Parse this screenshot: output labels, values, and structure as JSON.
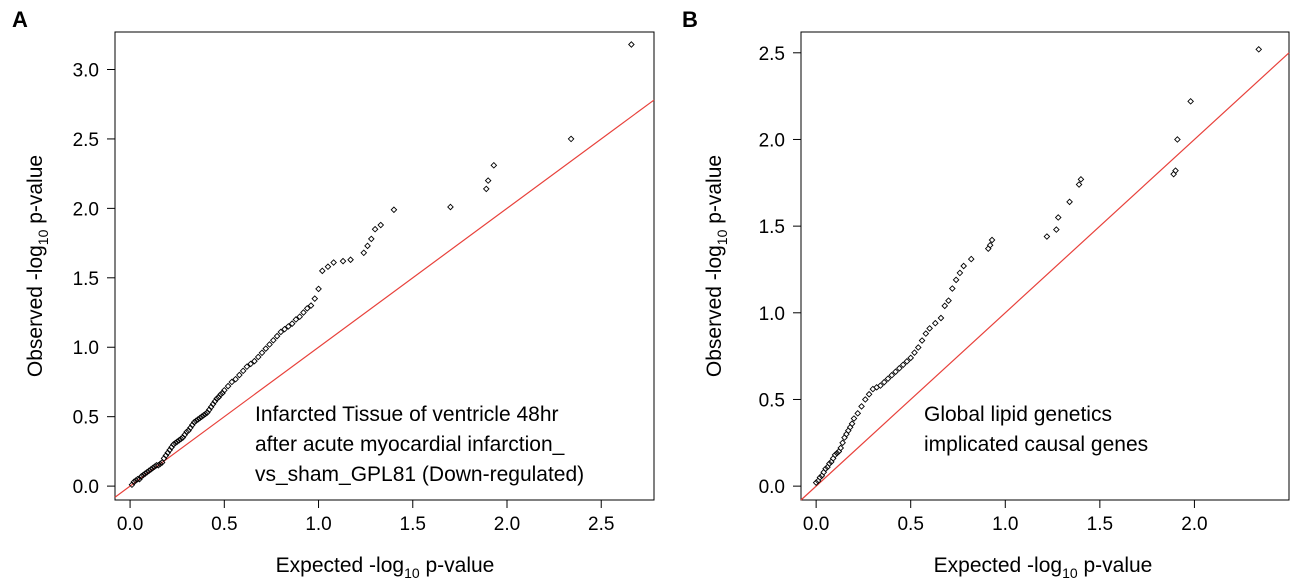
{
  "panels": [
    {
      "letter": "A",
      "xlabel": {
        "main": "Expected -log",
        "sub": "10",
        "rest": " p-value"
      },
      "ylabel": {
        "main": "Observed -log",
        "sub": "10",
        "rest": " p-value"
      },
      "annotation": [
        "Infarcted Tissue of ventricle 48hr",
        "after acute myocardial infarction_",
        "vs_sham_GPL81 (Down-regulated)"
      ],
      "xticks": [
        "0.0",
        "0.5",
        "1.0",
        "1.5",
        "2.0",
        "2.5"
      ],
      "yticks": [
        "0.0",
        "0.5",
        "1.0",
        "1.5",
        "2.0",
        "2.5",
        "3.0"
      ]
    },
    {
      "letter": "B",
      "xlabel": {
        "main": "Expected -log",
        "sub": "10",
        "rest": " p-value"
      },
      "ylabel": {
        "main": "Observed -log",
        "sub": "10",
        "rest": " p-value"
      },
      "annotation": [
        "Global lipid genetics",
        "implicated causal genes"
      ],
      "xticks": [
        "0.0",
        "0.5",
        "1.0",
        "1.5",
        "2.0"
      ],
      "yticks": [
        "0.0",
        "0.5",
        "1.0",
        "1.5",
        "2.0",
        "2.5"
      ]
    }
  ],
  "chart_data": [
    {
      "type": "scatter",
      "panel": "A",
      "xlabel": "Expected -log10 p-value",
      "ylabel": "Observed -log10 p-value",
      "xlim": [
        -0.08,
        2.78
      ],
      "ylim": [
        -0.1,
        3.27
      ],
      "reference_line": {
        "slope": 1,
        "intercept": 0,
        "color": "#e8413b"
      },
      "marker": "diamond",
      "x": [
        0.01,
        0.02,
        0.03,
        0.04,
        0.05,
        0.06,
        0.07,
        0.08,
        0.09,
        0.1,
        0.11,
        0.12,
        0.13,
        0.14,
        0.15,
        0.16,
        0.17,
        0.18,
        0.19,
        0.2,
        0.21,
        0.22,
        0.23,
        0.24,
        0.25,
        0.26,
        0.27,
        0.28,
        0.29,
        0.3,
        0.31,
        0.32,
        0.33,
        0.34,
        0.35,
        0.36,
        0.37,
        0.38,
        0.39,
        0.4,
        0.41,
        0.42,
        0.43,
        0.44,
        0.45,
        0.46,
        0.47,
        0.48,
        0.49,
        0.5,
        0.52,
        0.54,
        0.56,
        0.58,
        0.6,
        0.62,
        0.64,
        0.66,
        0.68,
        0.7,
        0.72,
        0.74,
        0.76,
        0.78,
        0.8,
        0.82,
        0.84,
        0.86,
        0.88,
        0.9,
        0.92,
        0.94,
        0.96,
        0.98,
        1.0,
        1.02,
        1.05,
        1.08,
        1.13,
        1.17,
        1.24,
        1.26,
        1.28,
        1.3,
        1.33,
        1.4,
        1.7,
        1.89,
        1.9,
        1.93,
        2.34,
        2.66
      ],
      "y": [
        0.01,
        0.03,
        0.04,
        0.05,
        0.05,
        0.07,
        0.08,
        0.09,
        0.1,
        0.11,
        0.12,
        0.13,
        0.14,
        0.15,
        0.15,
        0.16,
        0.17,
        0.2,
        0.22,
        0.24,
        0.26,
        0.28,
        0.3,
        0.31,
        0.32,
        0.33,
        0.34,
        0.35,
        0.37,
        0.39,
        0.4,
        0.42,
        0.44,
        0.46,
        0.47,
        0.48,
        0.49,
        0.5,
        0.51,
        0.52,
        0.53,
        0.55,
        0.57,
        0.59,
        0.61,
        0.63,
        0.64,
        0.66,
        0.67,
        0.69,
        0.72,
        0.75,
        0.77,
        0.8,
        0.83,
        0.86,
        0.88,
        0.9,
        0.93,
        0.96,
        0.99,
        1.02,
        1.05,
        1.08,
        1.11,
        1.13,
        1.15,
        1.17,
        1.2,
        1.22,
        1.25,
        1.28,
        1.3,
        1.35,
        1.42,
        1.55,
        1.58,
        1.61,
        1.62,
        1.63,
        1.68,
        1.73,
        1.78,
        1.85,
        1.88,
        1.99,
        2.01,
        2.14,
        2.2,
        2.31,
        2.5,
        3.18
      ]
    },
    {
      "type": "scatter",
      "panel": "B",
      "xlabel": "Expected -log10 p-value",
      "ylabel": "Observed -log10 p-value",
      "xlim": [
        -0.08,
        2.5
      ],
      "ylim": [
        -0.08,
        2.62
      ],
      "reference_line": {
        "slope": 1,
        "intercept": 0,
        "color": "#e8413b"
      },
      "marker": "diamond",
      "x": [
        0.0,
        0.01,
        0.02,
        0.03,
        0.04,
        0.05,
        0.06,
        0.07,
        0.08,
        0.09,
        0.1,
        0.11,
        0.12,
        0.13,
        0.14,
        0.15,
        0.16,
        0.17,
        0.18,
        0.19,
        0.2,
        0.22,
        0.24,
        0.26,
        0.28,
        0.3,
        0.32,
        0.34,
        0.36,
        0.38,
        0.4,
        0.42,
        0.44,
        0.46,
        0.48,
        0.5,
        0.52,
        0.54,
        0.56,
        0.58,
        0.6,
        0.63,
        0.66,
        0.68,
        0.7,
        0.72,
        0.74,
        0.76,
        0.78,
        0.82,
        0.91,
        0.92,
        0.93,
        1.22,
        1.27,
        1.28,
        1.34,
        1.39,
        1.4,
        1.89,
        1.9,
        1.91,
        1.98,
        2.34
      ],
      "y": [
        0.02,
        0.03,
        0.05,
        0.06,
        0.08,
        0.1,
        0.11,
        0.13,
        0.14,
        0.16,
        0.18,
        0.19,
        0.2,
        0.22,
        0.25,
        0.28,
        0.3,
        0.32,
        0.34,
        0.36,
        0.39,
        0.42,
        0.46,
        0.5,
        0.53,
        0.56,
        0.57,
        0.58,
        0.6,
        0.62,
        0.64,
        0.66,
        0.68,
        0.7,
        0.72,
        0.74,
        0.77,
        0.8,
        0.84,
        0.88,
        0.91,
        0.94,
        0.97,
        1.04,
        1.07,
        1.14,
        1.19,
        1.23,
        1.27,
        1.31,
        1.37,
        1.39,
        1.42,
        1.44,
        1.48,
        1.55,
        1.64,
        1.74,
        1.77,
        1.8,
        1.82,
        2.0,
        2.22,
        2.52
      ]
    }
  ]
}
